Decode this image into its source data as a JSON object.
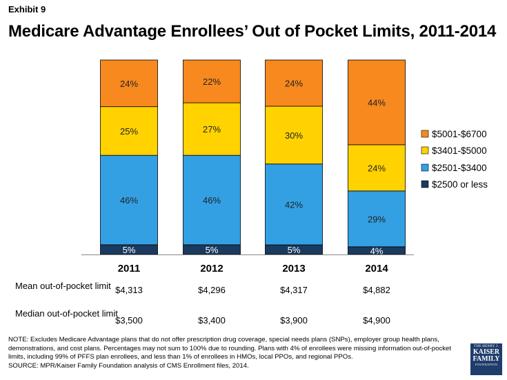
{
  "exhibit": "Exhibit 9",
  "title": "Medicare Advantage Enrollees’ Out of Pocket Limits, 2011-2014",
  "chart_data": {
    "type": "bar",
    "stacked": true,
    "categories": [
      "2011",
      "2012",
      "2013",
      "2014"
    ],
    "series": [
      {
        "name": "$2500 or less",
        "color": "#1b3a5f",
        "values": [
          5,
          5,
          5,
          4
        ],
        "labels": [
          "5%",
          "5%",
          "5%",
          "4%"
        ]
      },
      {
        "name": "$2501-$3400",
        "color": "#33a0e4",
        "values": [
          46,
          46,
          42,
          29
        ],
        "labels": [
          "46%",
          "46%",
          "42%",
          "29%"
        ]
      },
      {
        "name": "$3401-$5000",
        "color": "#ffd200",
        "values": [
          25,
          27,
          30,
          24
        ],
        "labels": [
          "25%",
          "27%",
          "30%",
          "24%"
        ]
      },
      {
        "name": "$5001-$6700",
        "color": "#f7891f",
        "values": [
          24,
          22,
          24,
          44
        ],
        "labels": [
          "24%",
          "22%",
          "24%",
          "44%"
        ]
      }
    ],
    "legend_order": [
      "$5001-$6700",
      "$3401-$5000",
      "$2501-$3400",
      "$2500 or less"
    ],
    "legend_position": "right",
    "ylim": [
      0,
      100
    ]
  },
  "table": {
    "mean_label": "Mean out-of-pocket limit",
    "mean_values": [
      "$4,313",
      "$4,296",
      "$4,317",
      "$4,882"
    ],
    "median_label": "Median out-of-pocket limit",
    "median_values": [
      "$3,500",
      "$3,400",
      "$3,900",
      "$4,900"
    ]
  },
  "note": "NOTE:  Excludes Medicare Advantage plans that do not offer prescription drug coverage, special needs plans (SNPs), employer group health plans, demonstrations, and cost plans. Percentages may not sum to 100% due to rounding. Plans with 4% of enrollees were missing information out-of-pocket limits, including 99% of PFFS plan enrollees, and less than 1% of enrollees in HMOs, local PPOs, and regional PPOs.",
  "source": "SOURCE:  MPR/Kaiser Family Foundation analysis of CMS Enrollment files, 2014.",
  "logo": {
    "line1": "THE HENRY J.",
    "line2": "KAISER",
    "line3": "FAMILY",
    "line4": "FOUNDATION"
  }
}
